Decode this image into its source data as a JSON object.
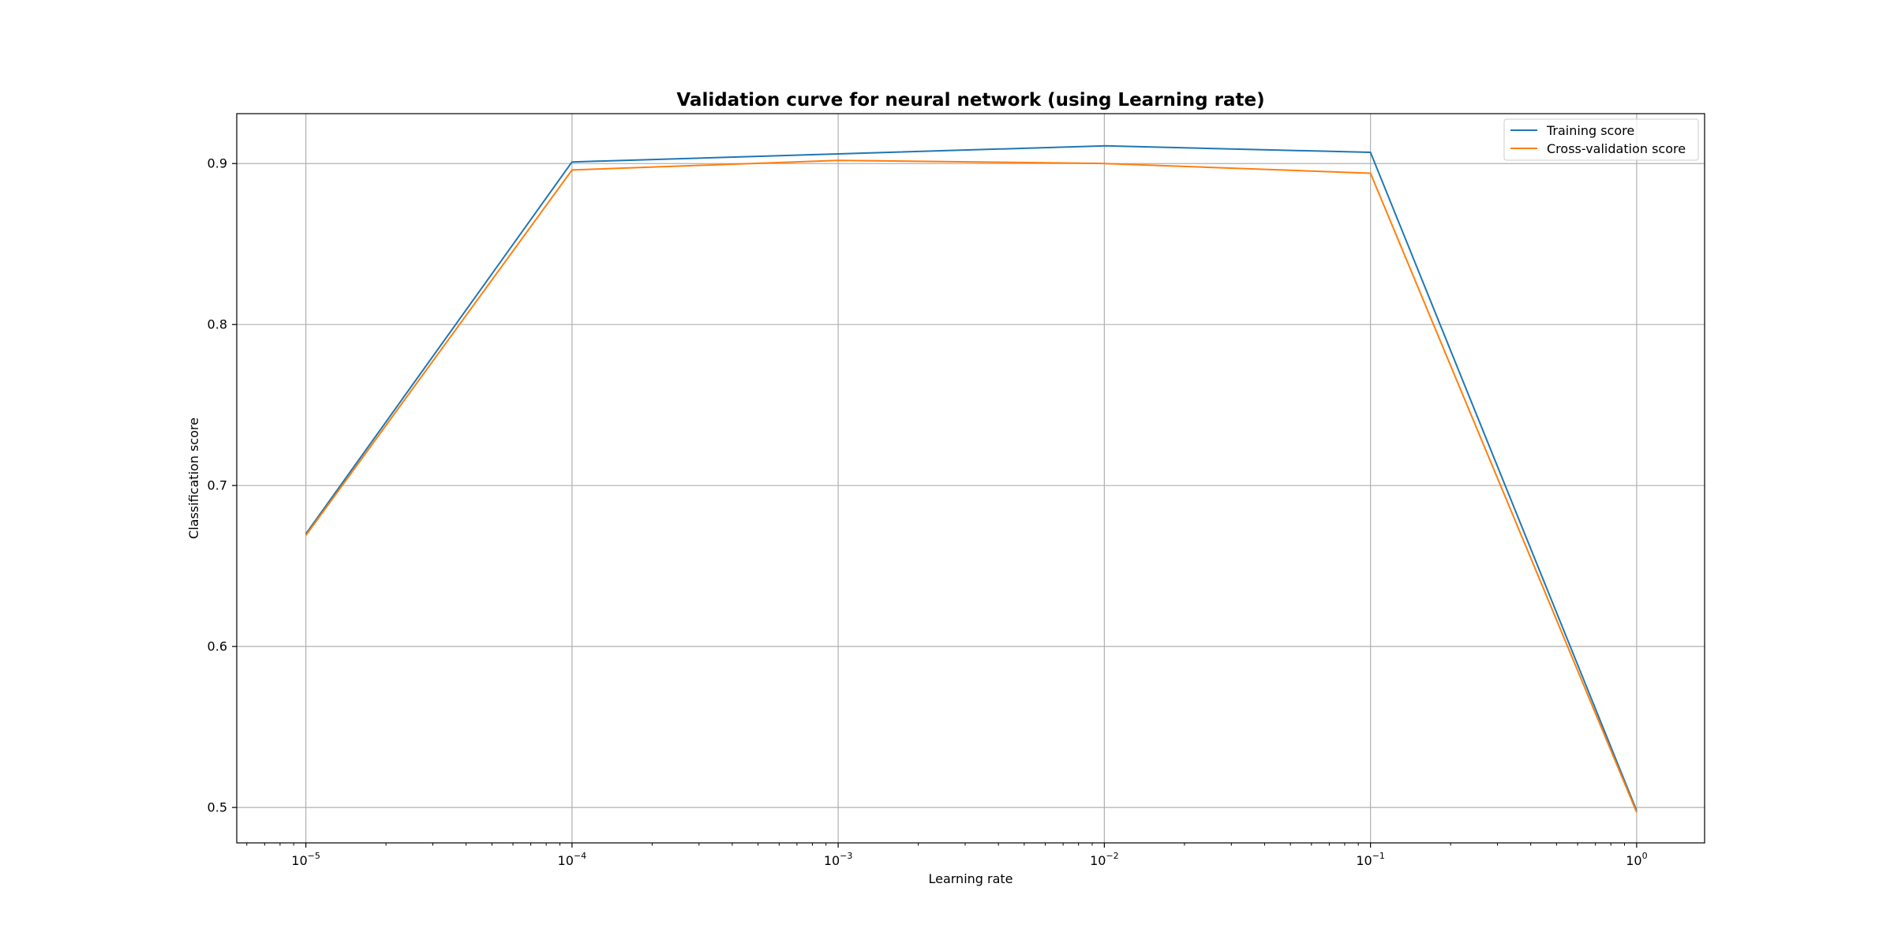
{
  "chart_data": {
    "type": "line",
    "title": "Validation curve for neural network (using Learning rate)",
    "xlabel": "Learning rate",
    "ylabel": "Classification score",
    "xscale": "log",
    "x": [
      1e-05,
      0.0001,
      0.001,
      0.01,
      0.1,
      1
    ],
    "xlim": [
      5.5e-06,
      1.8
    ],
    "ylim": [
      0.478,
      0.931
    ],
    "xticks": [
      {
        "value": 1e-05,
        "base": "10",
        "exp": "−5"
      },
      {
        "value": 0.0001,
        "base": "10",
        "exp": "−4"
      },
      {
        "value": 0.001,
        "base": "10",
        "exp": "−3"
      },
      {
        "value": 0.01,
        "base": "10",
        "exp": "−2"
      },
      {
        "value": 0.1,
        "base": "10",
        "exp": "−1"
      },
      {
        "value": 1,
        "base": "10",
        "exp": "0"
      }
    ],
    "yticks": [
      {
        "value": 0.5,
        "label": "0.5"
      },
      {
        "value": 0.6,
        "label": "0.6"
      },
      {
        "value": 0.7,
        "label": "0.7"
      },
      {
        "value": 0.8,
        "label": "0.8"
      },
      {
        "value": 0.9,
        "label": "0.9"
      }
    ],
    "grid": true,
    "legend_position": "top-right",
    "series": [
      {
        "name": "Training score",
        "color": "#1f77b4",
        "values": [
          0.67,
          0.901,
          0.906,
          0.911,
          0.907,
          0.498
        ]
      },
      {
        "name": "Cross-validation score",
        "color": "#ff7f0e",
        "values": [
          0.669,
          0.896,
          0.902,
          0.9,
          0.894,
          0.497
        ]
      }
    ]
  }
}
